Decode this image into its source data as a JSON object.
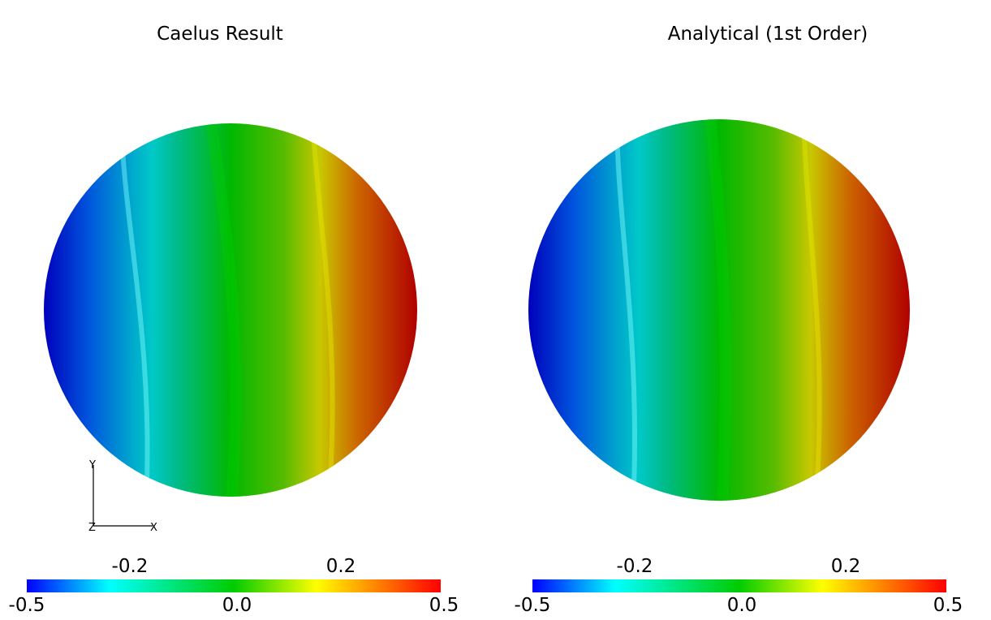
{
  "panels": [
    {
      "title": "Caelus Result"
    },
    {
      "title": "Analytical (1st Order)"
    }
  ],
  "colorbar": {
    "top_labels": [
      "-0.2",
      "0.2"
    ],
    "bottom_labels": [
      "-0.5",
      "0.0",
      "0.5"
    ],
    "stops": [
      {
        "value": -0.5,
        "color": "#0000ff"
      },
      {
        "value": -0.3,
        "color": "#00ffff"
      },
      {
        "value": 0.0,
        "color": "#00cc00"
      },
      {
        "value": 0.2,
        "color": "#ffff00"
      },
      {
        "value": 0.5,
        "color": "#ff0000"
      }
    ]
  },
  "disk_colors": {
    "left_edge": "#0000bb",
    "cyan_band": "#00c8c8",
    "green_core": "#00b800",
    "yellow_band": "#c8c800",
    "right_edge": "#b00000"
  },
  "orientation_axes": {
    "x": "X",
    "y": "Y",
    "z": "Z"
  }
}
